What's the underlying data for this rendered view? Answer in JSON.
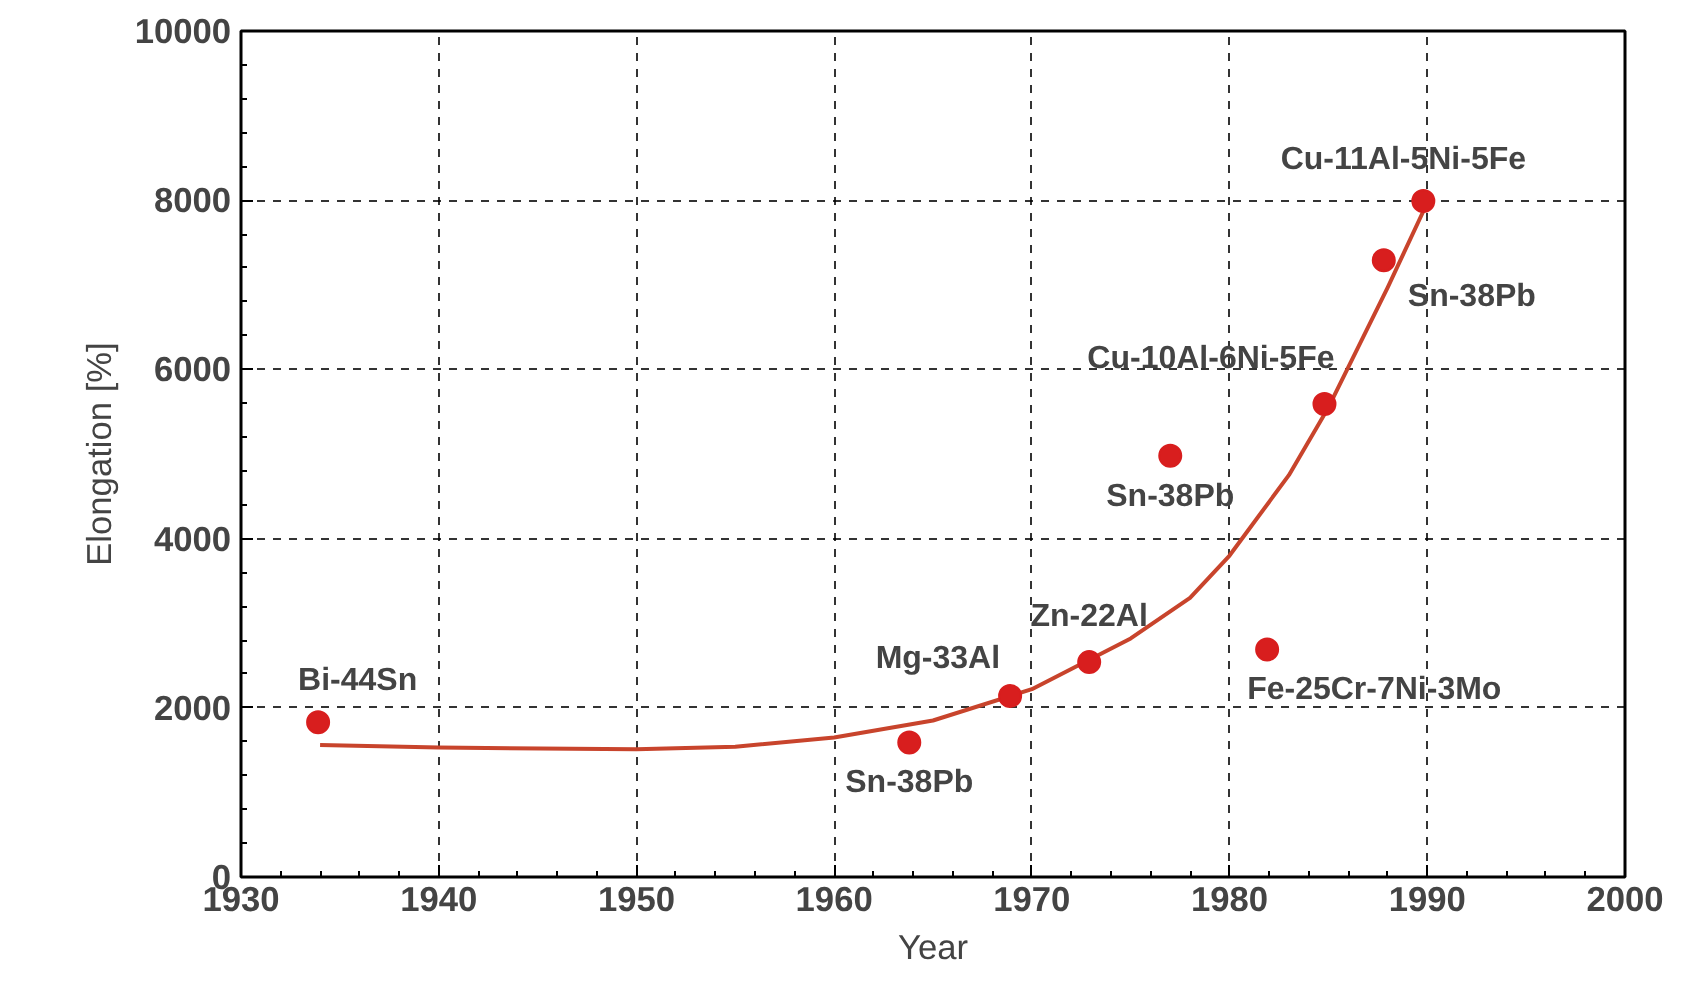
{
  "chart_data": {
    "type": "scatter",
    "xlabel": "Year",
    "ylabel": "Elongation [%]",
    "xlim": [
      1930,
      2000
    ],
    "ylim": [
      0,
      10000
    ],
    "xticks": [
      1930,
      1940,
      1950,
      1960,
      1970,
      1980,
      1990,
      2000
    ],
    "yticks": [
      0,
      2000,
      4000,
      6000,
      8000,
      10000
    ],
    "grid": true,
    "series": [
      {
        "marker": "circle",
        "color": "#d81e1e",
        "x": [
          1933.9,
          1963.8,
          1968.9,
          1972.9,
          1977.0,
          1981.9,
          1984.8,
          1987.8,
          1989.8
        ],
        "values": [
          1830,
          1590,
          2140,
          2540,
          4980,
          2690,
          5590,
          7290,
          7990
        ]
      },
      {
        "type": "line",
        "marker": "none",
        "color": "#c8442c",
        "line_style": "solid",
        "x": [
          1934,
          1940,
          1950,
          1955,
          1960,
          1965,
          1970,
          1975,
          1978,
          1980,
          1983,
          1985,
          1988,
          1990
        ],
        "values": [
          1560,
          1530,
          1510,
          1540,
          1650,
          1850,
          2220,
          2820,
          3300,
          3800,
          4750,
          5550,
          6970,
          7970
        ]
      }
    ],
    "annotations": [
      {
        "text": "Bi-44Sn",
        "x": 1933.9,
        "y": 1830
      },
      {
        "text": "Sn-38Pb",
        "x": 1963.8,
        "y": 1590
      },
      {
        "text": "Mg-33Al",
        "x": 1968.9,
        "y": 2140
      },
      {
        "text": "Zn-22Al",
        "x": 1972.9,
        "y": 2540
      },
      {
        "text": "Sn-38Pb",
        "x": 1977.0,
        "y": 4980
      },
      {
        "text": "Fe-25Cr-7Ni-3Mo",
        "x": 1981.9,
        "y": 2690
      },
      {
        "text": "Cu-10Al-6Ni-5Fe",
        "x": 1984.8,
        "y": 5590
      },
      {
        "text": "Sn-38Pb",
        "x": 1987.8,
        "y": 7290
      },
      {
        "text": "Cu-11Al-5Ni-5Fe",
        "x": 1989.8,
        "y": 7990
      }
    ]
  }
}
